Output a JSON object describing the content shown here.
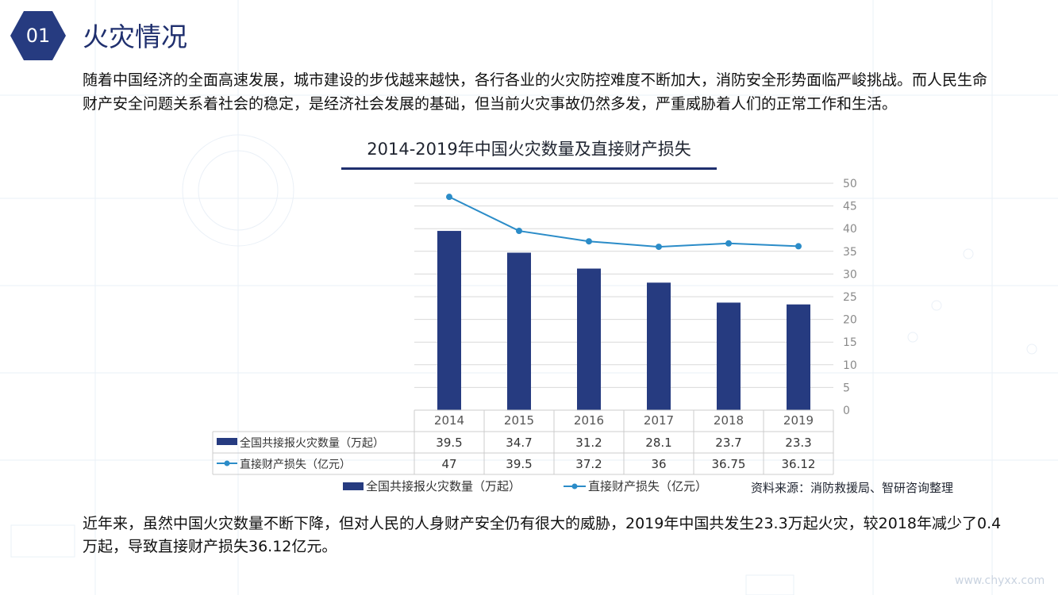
{
  "badge": {
    "number": "01"
  },
  "page_title": "火灾情况",
  "intro_text": "随着中国经济的全面高速发展，城市建设的步伐越来越快，各行各业的火灾防控难度不断加大，消防安全形势面临严峻挑战。而人民生命财产安全问题关系着社会的稳定，是经济社会发展的基础，但当前火灾事故仍然多发，严重威胁着人们的正常工作和生活。",
  "summary_text": "近年来，虽然中国火灾数量不断下降，但对人民的人身财产安全仍有很大的威胁，2019年中国共发生23.3万起火灾，较2018年减少了0.4万起，导致直接财产损失36.12亿元。",
  "source": "资料来源：消防救援局、智研咨询整理",
  "watermark": "www.chyxx.com",
  "colors": {
    "bar": "#263b80",
    "line": "#2b8cc8",
    "title_bar": "#1f2f6e"
  },
  "chart_data": {
    "type": "bar",
    "title": "2014-2019年中国火灾数量及直接财产损失",
    "categories": [
      "2014",
      "2015",
      "2016",
      "2017",
      "2018",
      "2019"
    ],
    "ylim": [
      0,
      50
    ],
    "yticks": [
      "0",
      "5",
      "10",
      "15",
      "20",
      "25",
      "30",
      "35",
      "40",
      "45",
      "50"
    ],
    "grid": true,
    "legend_placement": "bottom",
    "series": [
      {
        "name": "全国共接报火灾数量（万起）",
        "type": "bar",
        "values": [
          39.5,
          34.7,
          31.2,
          28.1,
          23.7,
          23.3
        ],
        "labels": [
          "39.5",
          "34.7",
          "31.2",
          "28.1",
          "23.7",
          "23.3"
        ]
      },
      {
        "name": "直接财产损失（亿元）",
        "type": "line",
        "values": [
          47,
          39.5,
          37.2,
          36,
          36.75,
          36.12
        ],
        "labels": [
          "47",
          "39.5",
          "37.2",
          "36",
          "36.75",
          "36.12"
        ]
      }
    ]
  }
}
